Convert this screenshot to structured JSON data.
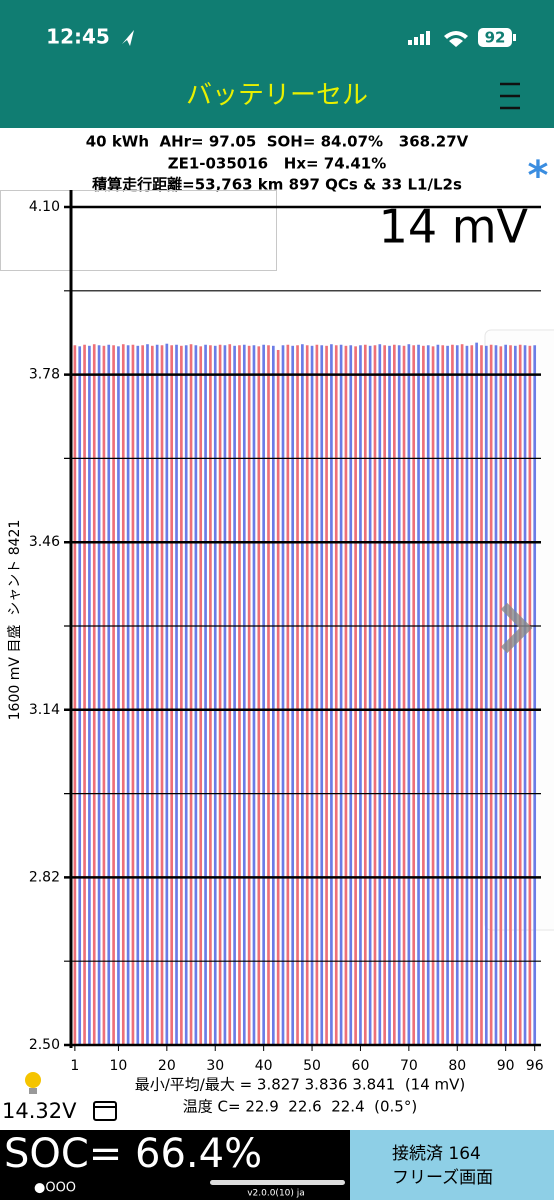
{
  "status_bar": {
    "time": "12:45",
    "battery": "92"
  },
  "header": {
    "title": "バッテリーセル"
  },
  "info": {
    "line1": "40 kWh  AHr= 97.05  SOH= 84.07%   368.27V",
    "line2": "ZE1-035016   Hx= 74.41%",
    "line3": "積算走行距離=53,763 km 897 QCs & 33 L1/L2s",
    "star": "*"
  },
  "chart_data": {
    "type": "bar",
    "title": "14 mV",
    "y_label": "1600 mV 目盛  シャント 8421",
    "x": [
      1,
      2,
      3,
      4,
      5,
      6,
      7,
      8,
      9,
      10,
      11,
      12,
      13,
      14,
      15,
      16,
      17,
      18,
      19,
      20,
      21,
      22,
      23,
      24,
      25,
      26,
      27,
      28,
      29,
      30,
      31,
      32,
      33,
      34,
      35,
      36,
      37,
      38,
      39,
      40,
      41,
      42,
      43,
      44,
      45,
      46,
      47,
      48,
      49,
      50,
      51,
      52,
      53,
      54,
      55,
      56,
      57,
      58,
      59,
      60,
      61,
      62,
      63,
      64,
      65,
      66,
      67,
      68,
      69,
      70,
      71,
      72,
      73,
      74,
      75,
      76,
      77,
      78,
      79,
      80,
      81,
      82,
      83,
      84,
      85,
      86,
      87,
      88,
      89,
      90,
      91,
      92,
      93,
      94,
      95,
      96
    ],
    "values": [
      3.836,
      3.834,
      3.837,
      3.835,
      3.838,
      3.836,
      3.835,
      3.837,
      3.836,
      3.834,
      3.838,
      3.836,
      3.837,
      3.835,
      3.836,
      3.838,
      3.835,
      3.837,
      3.836,
      3.839,
      3.836,
      3.837,
      3.835,
      3.836,
      3.838,
      3.836,
      3.834,
      3.837,
      3.836,
      3.835,
      3.837,
      3.836,
      3.838,
      3.835,
      3.836,
      3.837,
      3.835,
      3.836,
      3.834,
      3.837,
      3.836,
      3.835,
      3.827,
      3.836,
      3.837,
      3.835,
      3.836,
      3.838,
      3.836,
      3.835,
      3.837,
      3.836,
      3.835,
      3.838,
      3.836,
      3.837,
      3.835,
      3.836,
      3.834,
      3.836,
      3.837,
      3.835,
      3.836,
      3.838,
      3.836,
      3.835,
      3.837,
      3.836,
      3.835,
      3.838,
      3.836,
      3.837,
      3.835,
      3.836,
      3.834,
      3.837,
      3.836,
      3.835,
      3.837,
      3.836,
      3.838,
      3.835,
      3.836,
      3.841,
      3.836,
      3.835,
      3.837,
      3.836,
      3.834,
      3.837,
      3.836,
      3.835,
      3.837,
      3.836,
      3.835,
      3.836
    ],
    "colors": [
      "#ee7078",
      "#6b7ce6"
    ],
    "xlim": [
      0.2,
      97.3
    ],
    "ylim": [
      2.5,
      4.1
    ],
    "yticks": [
      {
        "value": 4.1,
        "label": "4.10"
      },
      3.78,
      3.46,
      3.14,
      2.82,
      {
        "value": 2.5,
        "label": "2.50"
      }
    ],
    "minor_yticks": [
      3.94,
      3.62,
      3.3,
      2.98,
      2.66
    ],
    "xticks": [
      1,
      10,
      20,
      30,
      40,
      50,
      60,
      70,
      80,
      90,
      96
    ],
    "grid": true
  },
  "stats": {
    "minavgmax": "最小/平均/最大 = 3.827 3.836 3.841  (14 mV)",
    "temperature": "温度 C= 22.9  22.6  22.4  (0.5°)"
  },
  "footer": {
    "voltage": "14.32V",
    "soc": "SOC= 66.4%",
    "page_dots": "●OOO",
    "version": "v2.0.0(10) ja",
    "connection": "接続済 164",
    "freeze": "フリーズ画面"
  }
}
